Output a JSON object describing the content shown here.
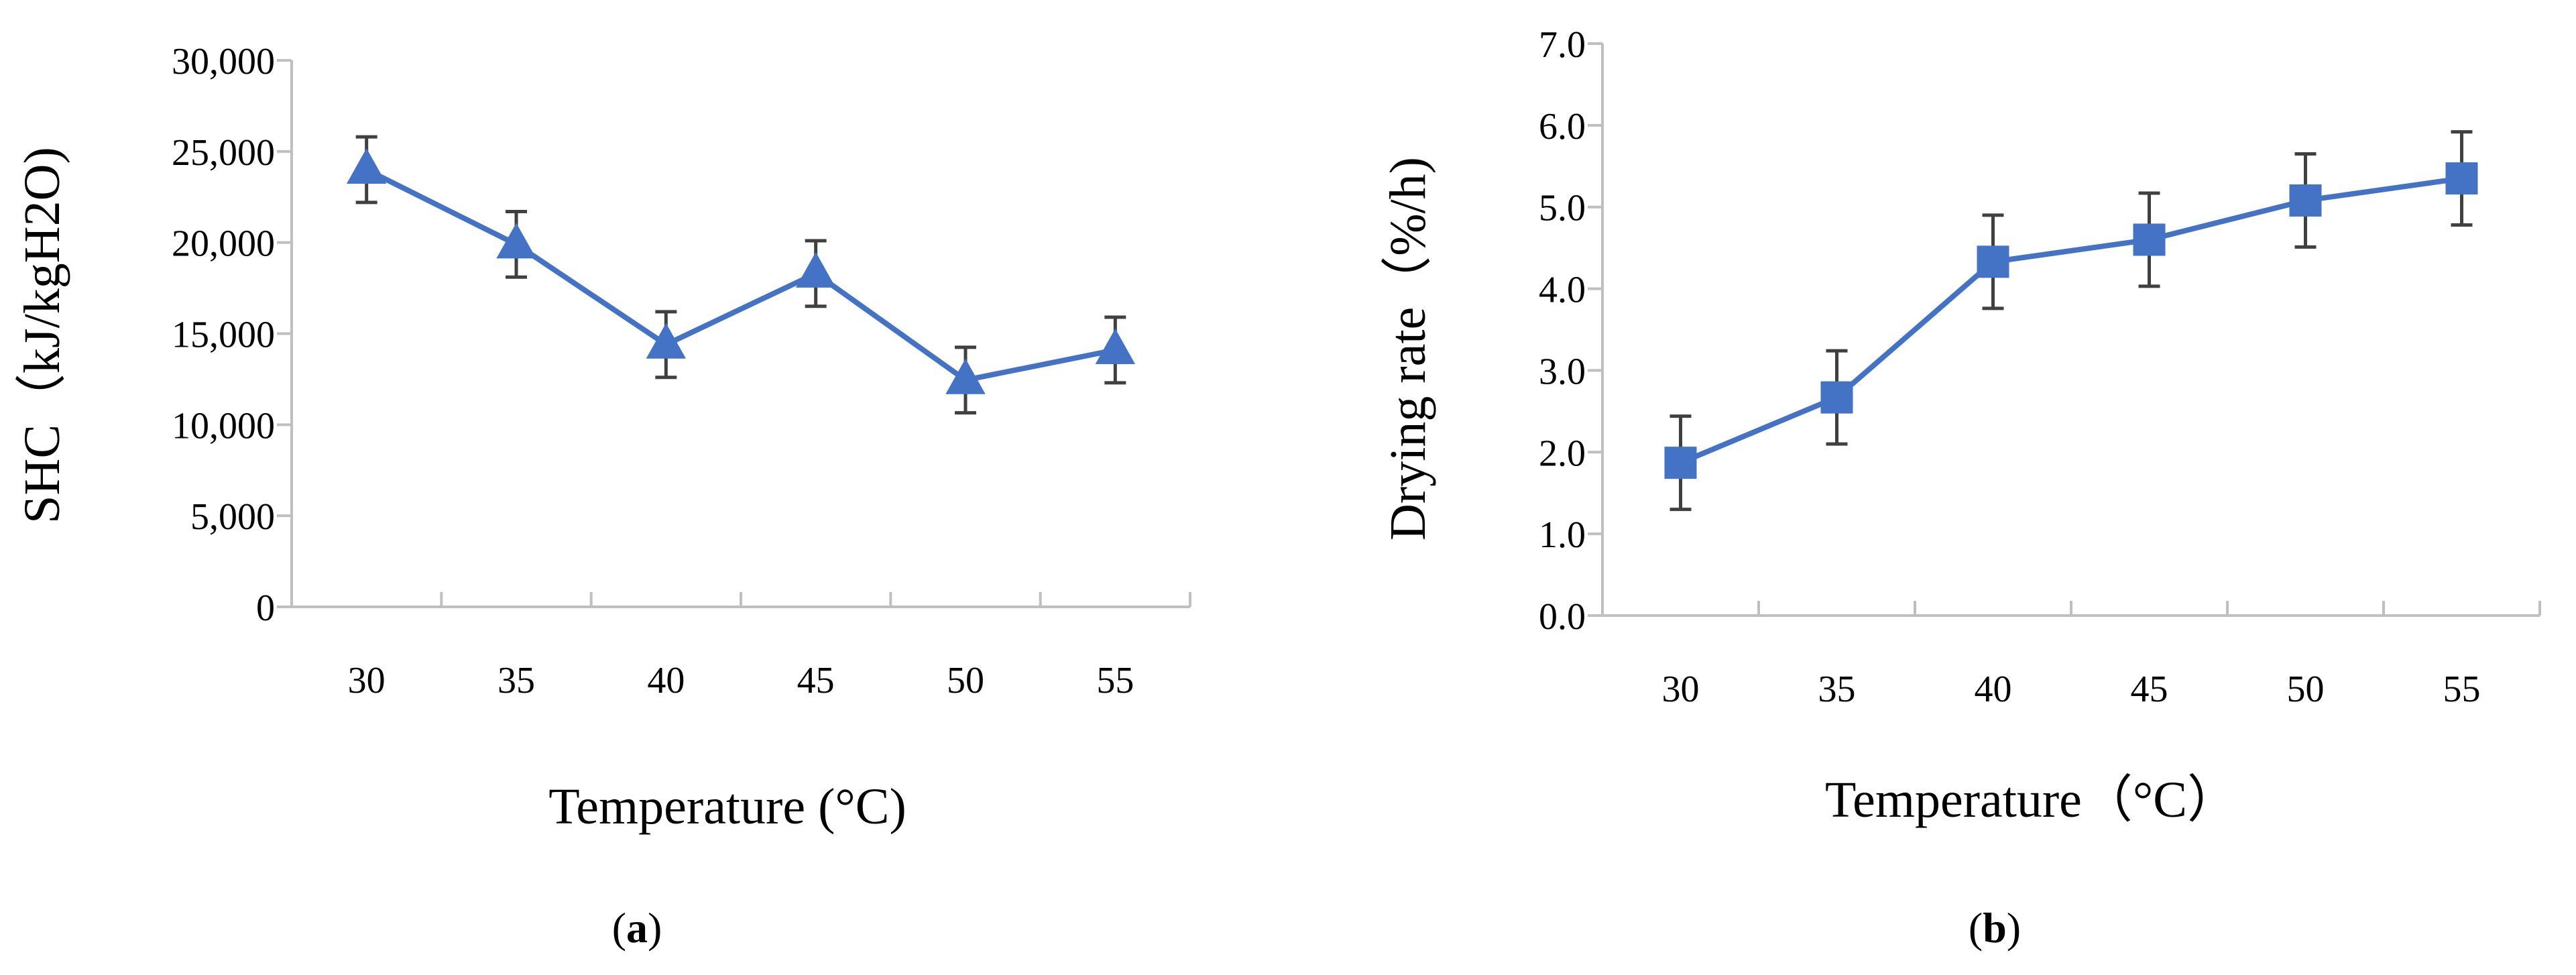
{
  "chart_data": [
    {
      "type": "line",
      "panel_label": "a",
      "title": "",
      "xlabel": "Temperature (°C)",
      "ylabel": "SHC（kJ/kgH2O)",
      "categories": [
        "30",
        "35",
        "40",
        "45",
        "50",
        "55"
      ],
      "ylim": [
        0,
        30000
      ],
      "yticks": [
        0,
        5000,
        10000,
        15000,
        20000,
        25000,
        30000
      ],
      "ytick_labels": [
        "0",
        "5,000",
        "10,000",
        "15,000",
        "20,000",
        "25,000",
        "30,000"
      ],
      "grid": false,
      "marker": "triangle",
      "color": "#4472C4",
      "series": [
        {
          "name": "SHC",
          "values": [
            24000,
            19900,
            14400,
            18300,
            12450,
            14100
          ],
          "error": [
            1800,
            1800,
            1800,
            1800,
            1800,
            1800
          ]
        }
      ]
    },
    {
      "type": "line",
      "panel_label": "b",
      "title": "",
      "xlabel": "Temperature（°C）",
      "ylabel": "Drying rate（%/h)",
      "categories": [
        "30",
        "35",
        "40",
        "45",
        "50",
        "55"
      ],
      "ylim": [
        0,
        7
      ],
      "yticks": [
        0,
        1,
        2,
        3,
        4,
        5,
        6,
        7
      ],
      "ytick_labels": [
        "0.0",
        "1.0",
        "2.0",
        "3.0",
        "4.0",
        "5.0",
        "6.0",
        "7.0"
      ],
      "grid": false,
      "marker": "square",
      "color": "#4472C4",
      "series": [
        {
          "name": "Drying rate",
          "values": [
            1.87,
            2.67,
            4.33,
            4.6,
            5.08,
            5.35
          ],
          "error": [
            0.57,
            0.57,
            0.57,
            0.57,
            0.57,
            0.57
          ]
        }
      ]
    }
  ]
}
